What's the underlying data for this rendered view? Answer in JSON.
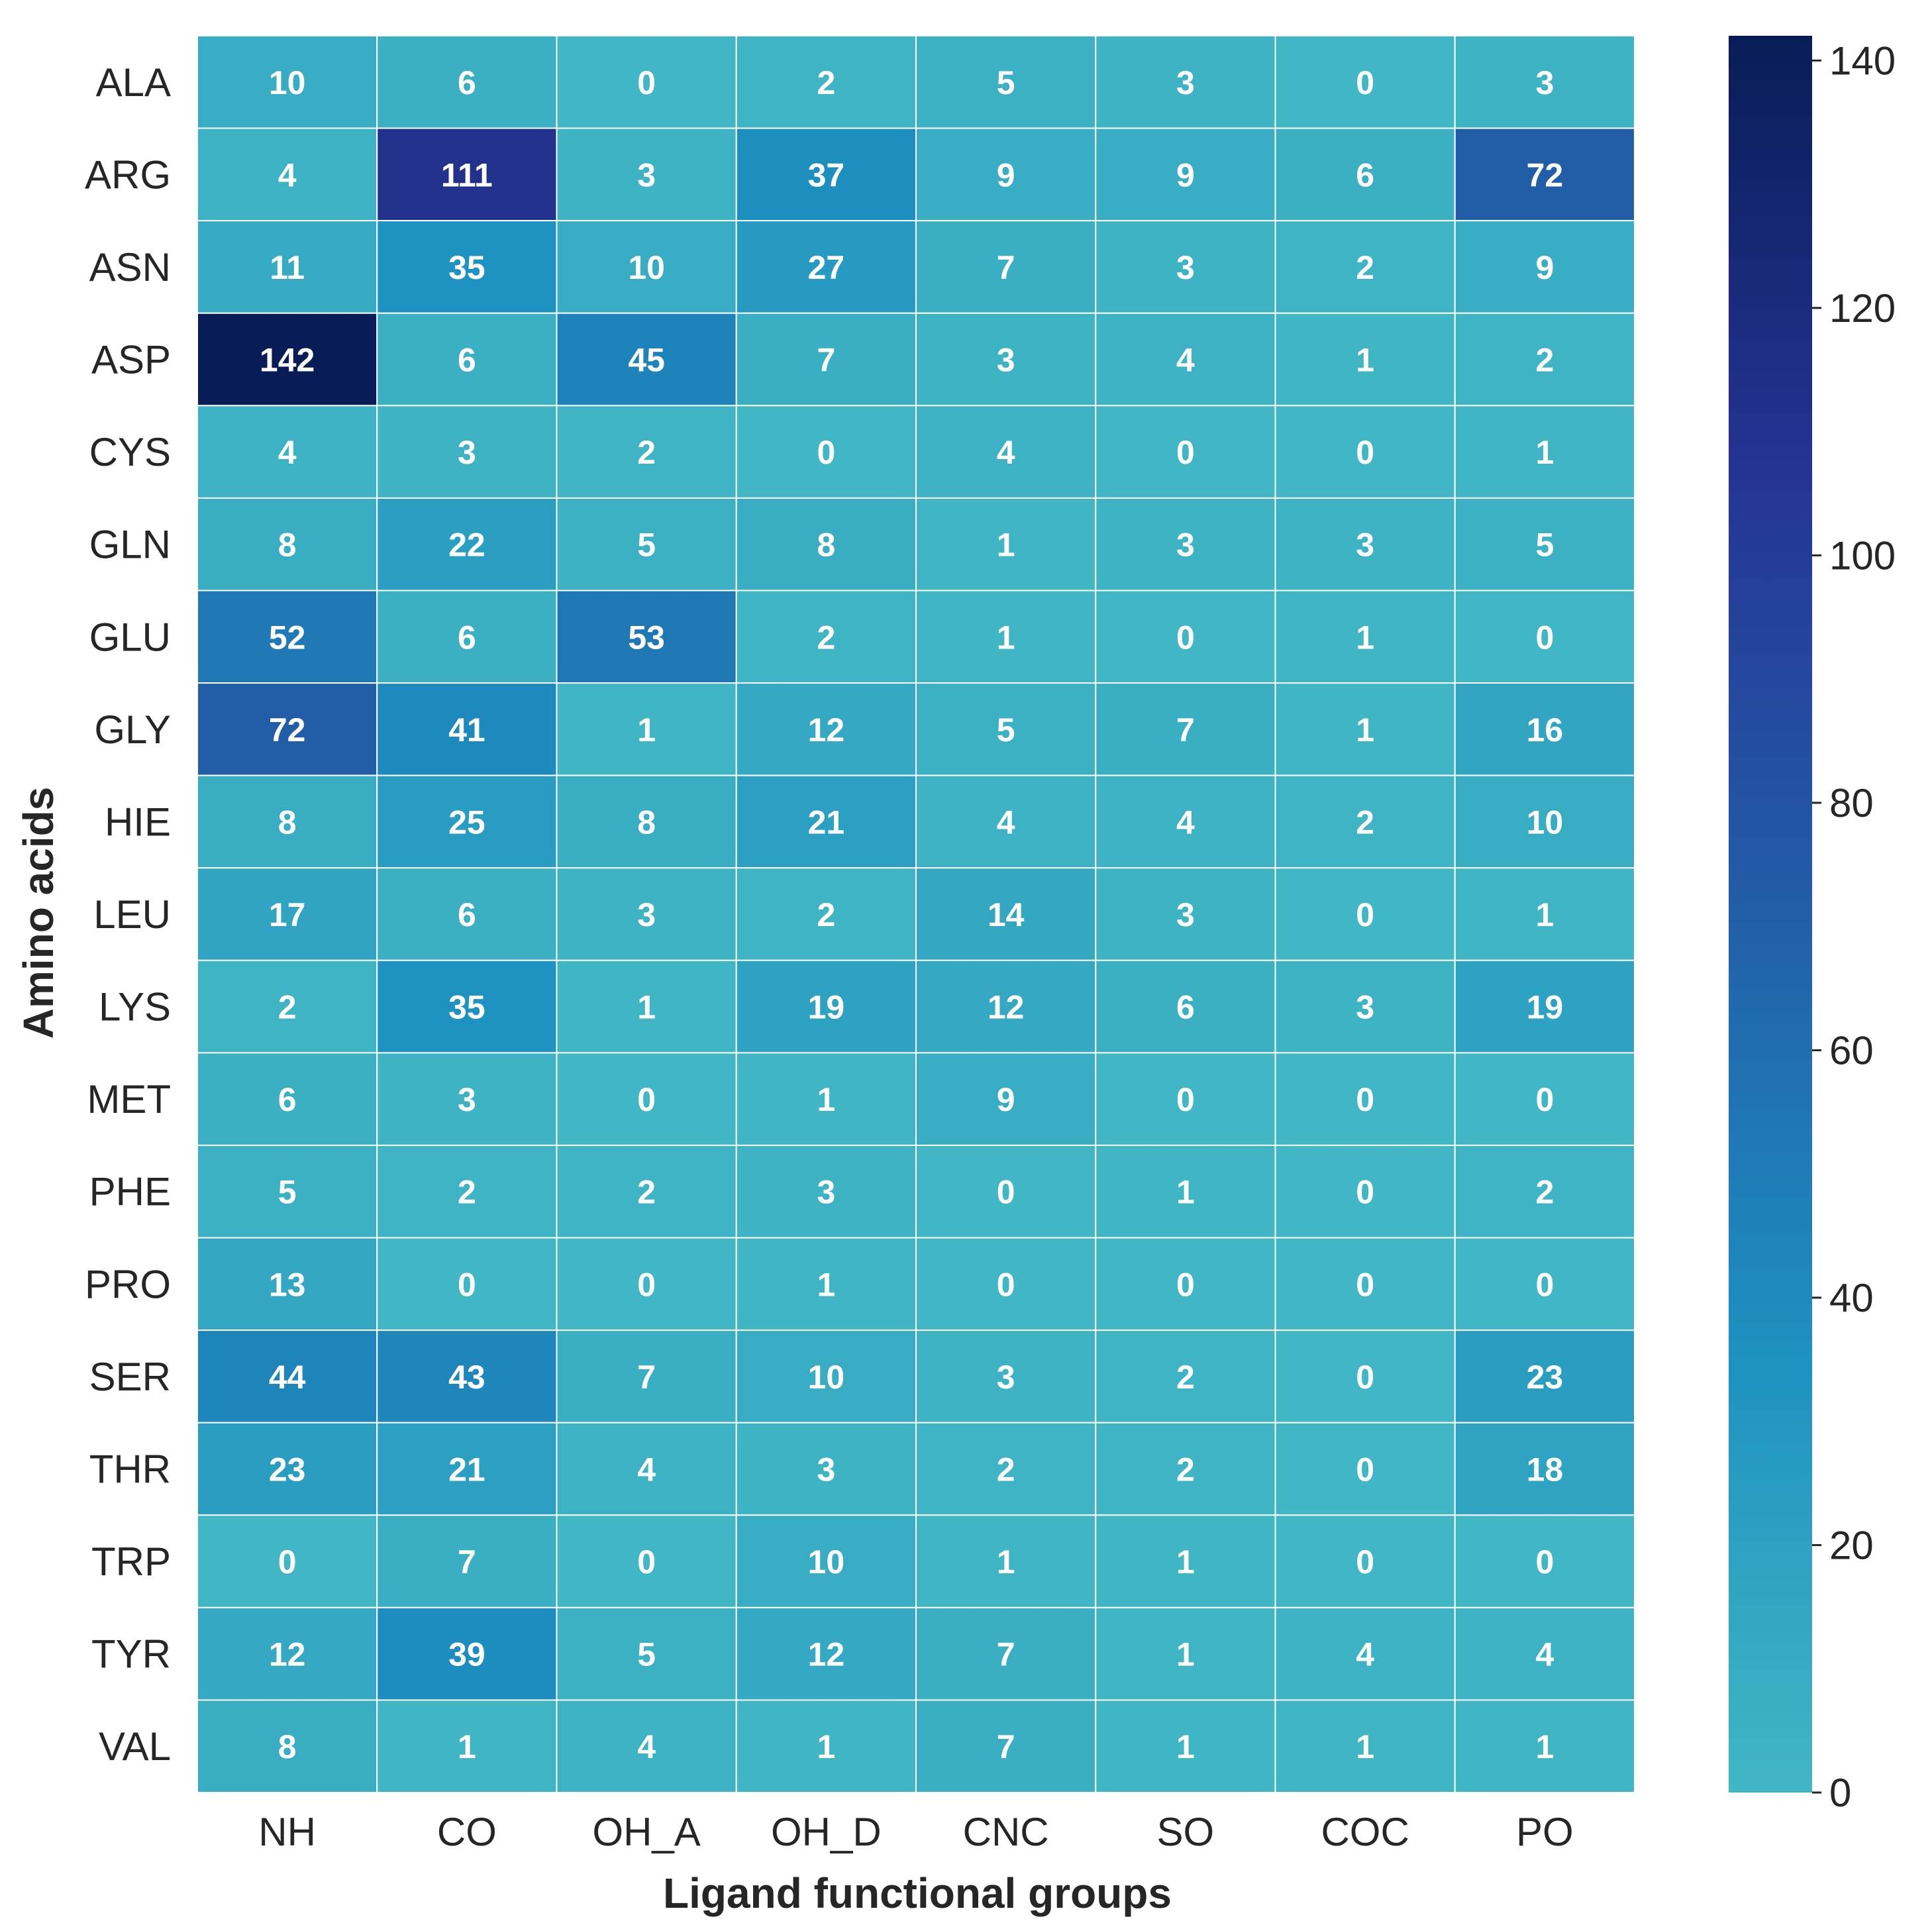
{
  "chart_data": {
    "type": "heatmap",
    "title": "",
    "xlabel": "Ligand functional groups",
    "ylabel": "Amino acids",
    "x_categories": [
      "NH",
      "CO",
      "OH_A",
      "OH_D",
      "CNC",
      "SO",
      "COC",
      "PO"
    ],
    "y_categories": [
      "ALA",
      "ARG",
      "ASN",
      "ASP",
      "CYS",
      "GLN",
      "GLU",
      "GLY",
      "HIE",
      "LEU",
      "LYS",
      "MET",
      "PHE",
      "PRO",
      "SER",
      "THR",
      "TRP",
      "TYR",
      "VAL"
    ],
    "values": [
      [
        10,
        6,
        0,
        2,
        5,
        3,
        0,
        3
      ],
      [
        4,
        111,
        3,
        37,
        9,
        9,
        6,
        72
      ],
      [
        11,
        35,
        10,
        27,
        7,
        3,
        2,
        9
      ],
      [
        142,
        6,
        45,
        7,
        3,
        4,
        1,
        2
      ],
      [
        4,
        3,
        2,
        0,
        4,
        0,
        0,
        1
      ],
      [
        8,
        22,
        5,
        8,
        1,
        3,
        3,
        5
      ],
      [
        52,
        6,
        53,
        2,
        1,
        0,
        1,
        0
      ],
      [
        72,
        41,
        1,
        12,
        5,
        7,
        1,
        16
      ],
      [
        8,
        25,
        8,
        21,
        4,
        4,
        2,
        10
      ],
      [
        17,
        6,
        3,
        2,
        14,
        3,
        0,
        1
      ],
      [
        2,
        35,
        1,
        19,
        12,
        6,
        3,
        19
      ],
      [
        6,
        3,
        0,
        1,
        9,
        0,
        0,
        0
      ],
      [
        5,
        2,
        2,
        3,
        0,
        1,
        0,
        2
      ],
      [
        13,
        0,
        0,
        1,
        0,
        0,
        0,
        0
      ],
      [
        44,
        43,
        7,
        10,
        3,
        2,
        0,
        23
      ],
      [
        23,
        21,
        4,
        3,
        2,
        2,
        0,
        18
      ],
      [
        0,
        7,
        0,
        10,
        1,
        1,
        0,
        0
      ],
      [
        12,
        39,
        5,
        12,
        7,
        1,
        4,
        4
      ],
      [
        8,
        1,
        4,
        1,
        7,
        1,
        1,
        1
      ]
    ],
    "annotations": true,
    "colorbar": {
      "range": [
        0,
        142
      ],
      "ticks": [
        0,
        20,
        40,
        60,
        80,
        100,
        120,
        140
      ],
      "tick_labels": [
        "0",
        "20",
        "40",
        "60",
        "80",
        "100",
        "120",
        "140"
      ],
      "placement": "right"
    },
    "colormap": {
      "name": "YlGnBu-upper",
      "stops": [
        "#41b6c4",
        "#1d91c0",
        "#225ea8",
        "#253494",
        "#081d58"
      ]
    },
    "grid": false,
    "cell_border_color": "#ffffff",
    "annotation_color": "#ffffff",
    "text_color": "#262626"
  }
}
